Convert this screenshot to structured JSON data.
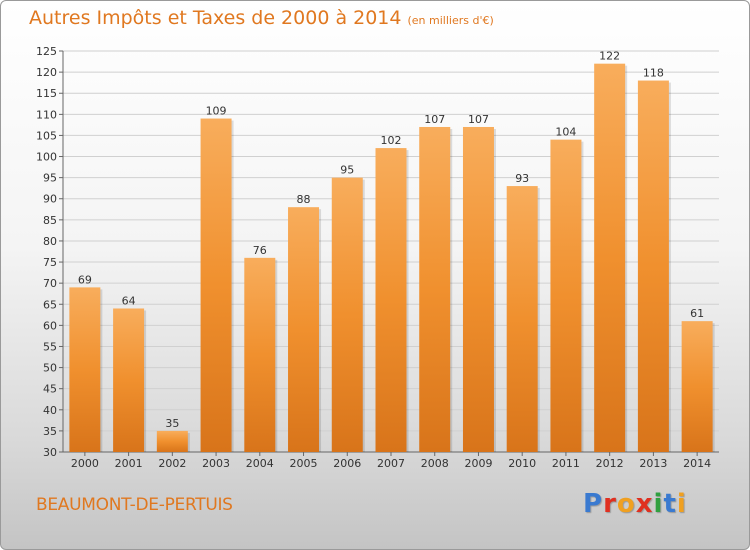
{
  "header": {
    "title": "Autres Impôts et Taxes de 2000 à 2014",
    "unit": "(en milliers d'€)"
  },
  "footer": {
    "city": "BEAUMONT-DE-PERTUIS",
    "logo": "Proxiti",
    "logo_colors": [
      "#3a7ad0",
      "#e03020",
      "#f0a020",
      "#e03020",
      "#30a040",
      "#3a7ad0",
      "#f0a020"
    ]
  },
  "chart_data": {
    "type": "bar",
    "title": "Autres Impôts et Taxes de 2000 à 2014",
    "subtitle": "(en milliers d'€)",
    "xlabel": "",
    "ylabel": "",
    "categories": [
      "2000",
      "2001",
      "2002",
      "2003",
      "2004",
      "2005",
      "2006",
      "2007",
      "2008",
      "2009",
      "2010",
      "2011",
      "2012",
      "2013",
      "2014"
    ],
    "values": [
      69,
      64,
      35,
      109,
      76,
      88,
      95,
      102,
      107,
      107,
      93,
      104,
      122,
      118,
      61
    ],
    "ylim": [
      30,
      125
    ],
    "yticks": [
      30,
      35,
      40,
      45,
      50,
      55,
      60,
      65,
      70,
      75,
      80,
      85,
      90,
      95,
      100,
      105,
      110,
      115,
      120,
      125
    ],
    "grid": true,
    "legend": "none",
    "bar_color": "#f0902e",
    "bar_color_light": "#f8ad5c",
    "bar_color_dark": "#d8741a"
  }
}
